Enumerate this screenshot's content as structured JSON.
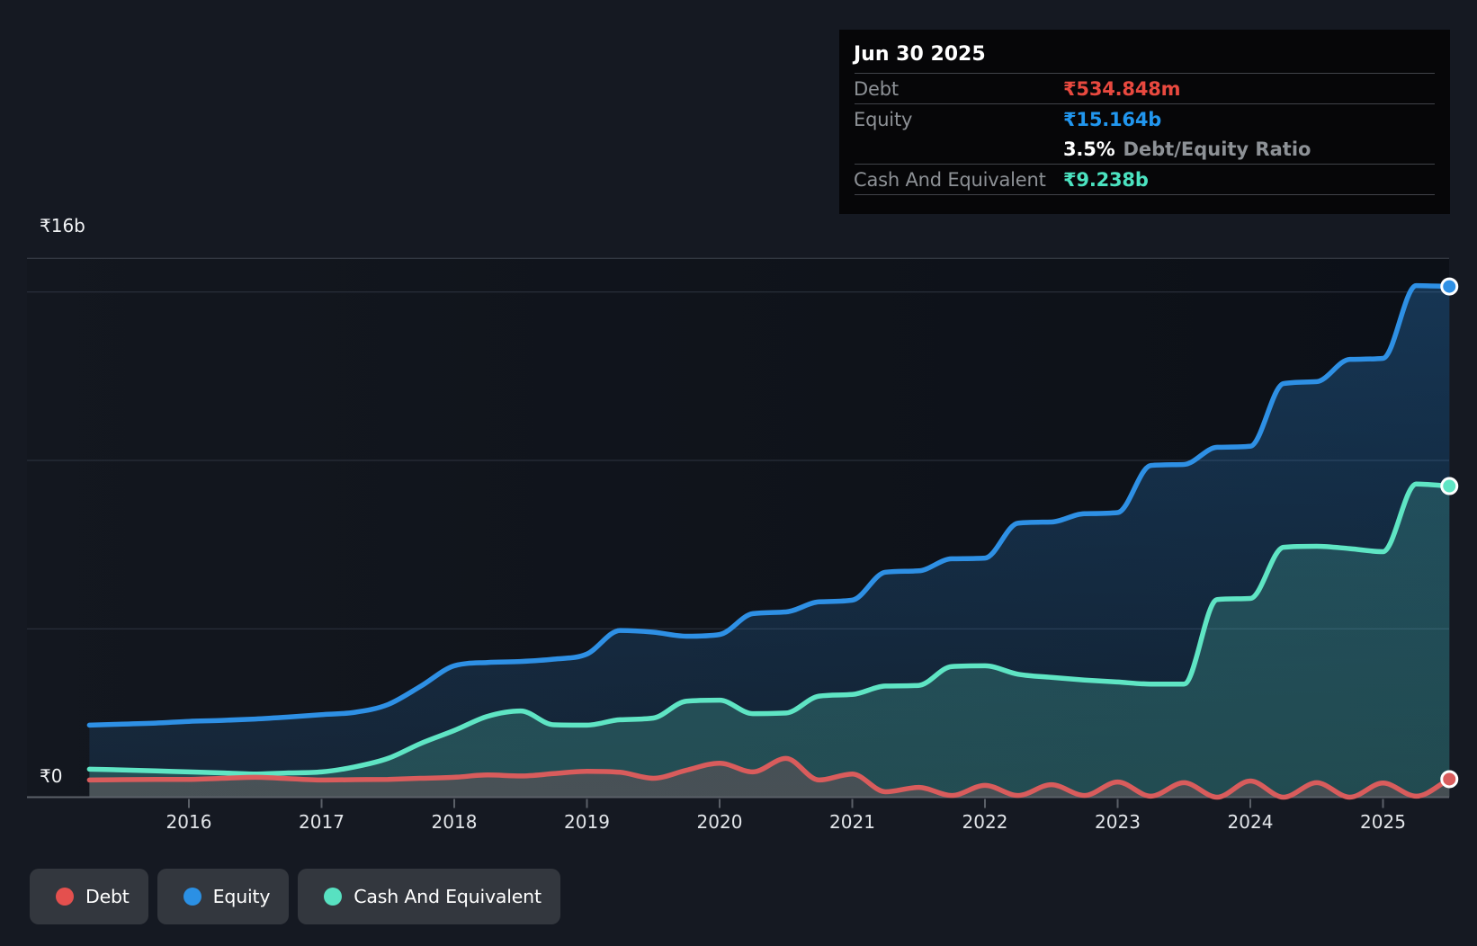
{
  "page": {
    "background": "#151922"
  },
  "tooltip": {
    "date": "Jun 30 2025",
    "debt_label": "Debt",
    "debt_value": "₹534.848m",
    "equity_label": "Equity",
    "equity_value": "₹15.164b",
    "ratio_value": "3.5%",
    "ratio_label": "Debt/Equity Ratio",
    "cash_label": "Cash And Equivalent",
    "cash_value": "₹9.238b",
    "colors": {
      "debt": "#e8493f",
      "equity": "#2196ee",
      "cash": "#4be2c0"
    }
  },
  "legend": {
    "items": [
      {
        "label": "Debt",
        "color": "#e4504e"
      },
      {
        "label": "Equity",
        "color": "#2b90e4"
      },
      {
        "label": "Cash And Equivalent",
        "color": "#58e1c1"
      }
    ]
  },
  "chart_data": {
    "type": "area",
    "x_unit": "year (quarterly samples)",
    "y_unit": "₹ billions (INR)",
    "x": [
      2015.25,
      2015.5,
      2015.75,
      2016.0,
      2016.25,
      2016.5,
      2016.75,
      2017.0,
      2017.25,
      2017.5,
      2017.75,
      2018.0,
      2018.25,
      2018.5,
      2018.75,
      2019.0,
      2019.25,
      2019.5,
      2019.75,
      2020.0,
      2020.25,
      2020.5,
      2020.75,
      2021.0,
      2021.25,
      2021.5,
      2021.75,
      2022.0,
      2022.25,
      2022.5,
      2022.75,
      2023.0,
      2023.25,
      2023.5,
      2023.75,
      2024.0,
      2024.25,
      2024.5,
      2024.75,
      2025.0,
      2025.25,
      2025.5
    ],
    "series": [
      {
        "name": "Equity",
        "color": "#2e90e5",
        "values": [
          2.14,
          2.17,
          2.2,
          2.25,
          2.28,
          2.32,
          2.38,
          2.45,
          2.52,
          2.75,
          3.3,
          3.9,
          4.0,
          4.03,
          4.1,
          4.25,
          4.95,
          4.9,
          4.78,
          4.83,
          5.45,
          5.5,
          5.8,
          5.85,
          6.68,
          6.72,
          7.08,
          7.1,
          8.14,
          8.17,
          8.42,
          8.45,
          9.85,
          9.88,
          10.39,
          10.42,
          12.28,
          12.34,
          13.0,
          13.03,
          15.19,
          15.164
        ]
      },
      {
        "name": "Cash And Equivalent",
        "color": "#5fe5c4",
        "values": [
          0.83,
          0.81,
          0.78,
          0.75,
          0.72,
          0.69,
          0.72,
          0.75,
          0.9,
          1.15,
          1.6,
          1.98,
          2.4,
          2.56,
          2.15,
          2.14,
          2.3,
          2.35,
          2.85,
          2.88,
          2.48,
          2.5,
          3.0,
          3.05,
          3.3,
          3.32,
          3.88,
          3.9,
          3.65,
          3.56,
          3.48,
          3.42,
          3.36,
          3.36,
          5.87,
          5.9,
          7.42,
          7.45,
          7.38,
          7.29,
          9.3,
          9.238
        ]
      },
      {
        "name": "Debt",
        "color": "#d95c5c",
        "values": [
          0.51,
          0.52,
          0.53,
          0.53,
          0.56,
          0.59,
          0.55,
          0.51,
          0.52,
          0.53,
          0.56,
          0.59,
          0.66,
          0.63,
          0.7,
          0.77,
          0.74,
          0.56,
          0.8,
          1.01,
          0.75,
          1.15,
          0.51,
          0.69,
          0.16,
          0.29,
          0.05,
          0.35,
          0.05,
          0.37,
          0.05,
          0.45,
          0.03,
          0.43,
          0.0,
          0.48,
          0.0,
          0.43,
          0.0,
          0.42,
          0.03,
          0.535
        ]
      }
    ],
    "end_values": {
      "Debt": "₹534.848m",
      "Equity": "₹15.164b",
      "Cash And Equivalent": "₹9.238b"
    },
    "x_ticks": [
      "2016",
      "2017",
      "2018",
      "2019",
      "2020",
      "2021",
      "2022",
      "2023",
      "2024",
      "2025"
    ],
    "y_axis": {
      "min": 0,
      "max": 16,
      "top_label": "₹16b",
      "zero_label": "₹0",
      "gridlines_b": [
        5,
        10,
        15
      ]
    },
    "grid_on": true,
    "legend_position": "bottom-left"
  }
}
